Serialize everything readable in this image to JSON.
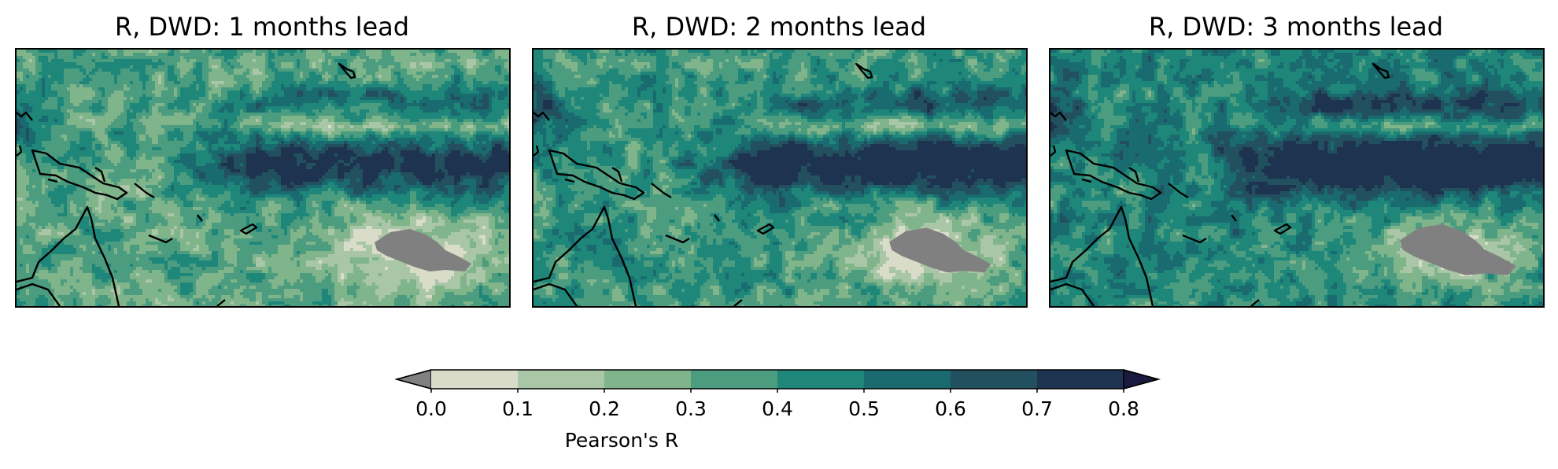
{
  "panels": [
    {
      "title": "R, DWD: 1 months lead",
      "masked_patch_scale": 1.0
    },
    {
      "title": "R, DWD: 2 months lead",
      "masked_patch_scale": 1.05
    },
    {
      "title": "R, DWD: 3 months lead",
      "masked_patch_scale": 1.2
    }
  ],
  "colorbar": {
    "label": "Pearson's R",
    "ticks": [
      "0.0",
      "0.1",
      "0.2",
      "0.3",
      "0.4",
      "0.5",
      "0.6",
      "0.7",
      "0.8"
    ],
    "bounds": [
      0.0,
      0.1,
      0.2,
      0.3,
      0.4,
      0.5,
      0.6,
      0.7,
      0.8
    ],
    "colors": [
      "#d9dcc9",
      "#a9c6a6",
      "#80b48a",
      "#4c9c80",
      "#1e877a",
      "#196b70",
      "#22505f",
      "#1d3350"
    ],
    "under_color": "#808080",
    "over_color": "#1a1a40",
    "extend": "both"
  },
  "masked_color": "#808080",
  "coastline_color": "#000000"
}
